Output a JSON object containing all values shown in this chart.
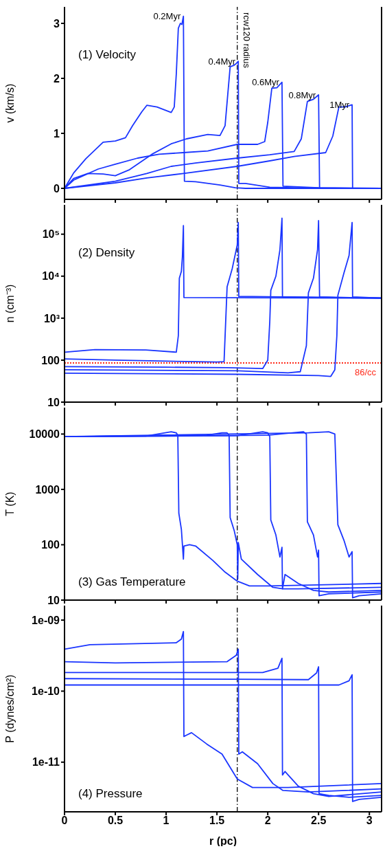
{
  "chart_data": [
    {
      "type": "line",
      "ylabel": "v (km/s)",
      "xlim": [
        0,
        3.12
      ],
      "xticks": [
        0,
        0.5,
        1,
        1.5,
        2,
        2.5,
        3
      ],
      "ylim": [
        -0.2,
        3.3
      ],
      "yticks": [
        0,
        1,
        2,
        3
      ],
      "tick_labels": "y",
      "annotations": [
        "(1) Velocity"
      ],
      "ref_lines": [
        {
          "axis": "x",
          "value": 1.7,
          "label": "rcw120 radius",
          "color": "#000000",
          "line_style": "dashed"
        }
      ],
      "series": [
        {
          "name": "0.2Myr",
          "color": "#1a35ff",
          "x": [
            0,
            0.09,
            0.21,
            0.38,
            0.5,
            0.6,
            0.67,
            0.76,
            0.81,
            0.91,
            1.05,
            1.08,
            1.1,
            1.12,
            1.14,
            1.155,
            1.17,
            1.18,
            1.29,
            1.53,
            1.68,
            1.78,
            3.12
          ],
          "values": [
            0,
            0.28,
            0.54,
            0.84,
            0.86,
            0.92,
            1.14,
            1.39,
            1.51,
            1.48,
            1.38,
            1.48,
            2.08,
            2.91,
            3.0,
            2.98,
            3.13,
            0.13,
            0.12,
            0.06,
            0.01,
            0,
            0
          ]
        },
        {
          "name": "0.4Myr",
          "color": "#1a35ff",
          "x": [
            0,
            0.09,
            0.23,
            0.38,
            0.5,
            0.64,
            0.86,
            1.05,
            1.2,
            1.41,
            1.53,
            1.58,
            1.63,
            1.67,
            1.69,
            1.71,
            1.715,
            1.78,
            2.02,
            2.26,
            3.12
          ],
          "values": [
            0,
            0.18,
            0.27,
            0.26,
            0.23,
            0.34,
            0.62,
            0.81,
            0.9,
            0.98,
            0.96,
            1.14,
            2.21,
            2.24,
            2.27,
            2.31,
            0.09,
            0.09,
            0.02,
            0.01,
            0
          ]
        },
        {
          "name": "0.6Myr",
          "color": "#1a35ff",
          "x": [
            0,
            0.09,
            0.33,
            0.5,
            0.72,
            0.93,
            1.17,
            1.41,
            1.7,
            1.9,
            1.97,
            2.0,
            2.04,
            2.09,
            2.14,
            2.15,
            2.5,
            3.12
          ],
          "values": [
            0,
            0.15,
            0.35,
            0.44,
            0.55,
            0.62,
            0.65,
            0.68,
            0.8,
            0.8,
            0.85,
            1.2,
            1.82,
            1.83,
            1.93,
            0.04,
            0.01,
            0
          ]
        },
        {
          "name": "0.8Myr",
          "color": "#1a35ff",
          "x": [
            0,
            0.5,
            0.81,
            1.05,
            1.29,
            1.7,
            2.02,
            2.26,
            2.33,
            2.39,
            2.45,
            2.5,
            2.51,
            3.12
          ],
          "values": [
            0,
            0.13,
            0.27,
            0.4,
            0.46,
            0.55,
            0.61,
            0.67,
            0.9,
            1.58,
            1.62,
            1.7,
            0,
            0
          ]
        },
        {
          "name": "1Myr",
          "color": "#1a35ff",
          "x": [
            0,
            0.5,
            0.81,
            1.17,
            1.7,
            2.02,
            2.26,
            2.57,
            2.64,
            2.7,
            2.76,
            2.83,
            2.835,
            3.12
          ],
          "values": [
            0,
            0.1,
            0.19,
            0.27,
            0.4,
            0.5,
            0.58,
            0.65,
            0.95,
            1.48,
            1.48,
            1.52,
            0,
            0
          ]
        }
      ]
    },
    {
      "type": "line",
      "ylabel": "n (cm⁻³)",
      "xlim": [
        0,
        3.12
      ],
      "xticks": [
        0,
        0.5,
        1,
        1.5,
        2,
        2.5,
        3
      ],
      "ylim": [
        10,
        500000
      ],
      "yticks": [
        10,
        100,
        {
          "value": 1000,
          "label": "10³"
        },
        {
          "value": 10000,
          "label": "10⁴"
        },
        {
          "value": 100000,
          "label": "10⁵"
        }
      ],
      "log": true,
      "tick_labels": "y",
      "annotations": [
        "(2) Density"
      ],
      "ref_lines": [
        {
          "axis": "x",
          "value": 1.7,
          "color": "#000000",
          "line_style": "dashed"
        },
        {
          "axis": "y",
          "value": 86,
          "label": "86/cc",
          "color": "#ff2a1a",
          "line_style": "dotted"
        }
      ],
      "series": [
        {
          "color": "#1a35ff",
          "x": [
            0,
            0.3,
            0.8,
            1.1,
            1.12,
            1.13,
            1.15,
            1.16,
            1.17,
            1.175,
            3.12
          ],
          "values": [
            155,
            178,
            175,
            155,
            380,
            8900,
            13000,
            29000,
            160000,
            3100,
            3000
          ]
        },
        {
          "color": "#1a35ff",
          "x": [
            0,
            0.5,
            1.5,
            1.57,
            1.6,
            1.65,
            1.7,
            1.71,
            1.715,
            3.12
          ],
          "values": [
            107,
            100,
            90,
            92,
            5600,
            15000,
            56000,
            190000,
            3300,
            3000
          ]
        },
        {
          "color": "#1a35ff",
          "x": [
            0,
            1.0,
            1.6,
            1.95,
            2.0,
            2.02,
            2.03,
            2.08,
            2.12,
            2.14,
            2.145,
            3.12
          ],
          "values": [
            70,
            68,
            66,
            63,
            100,
            830,
            4600,
            10000,
            43000,
            240000,
            3200,
            3000
          ]
        },
        {
          "color": "#1a35ff",
          "x": [
            0,
            1.7,
            2.2,
            2.32,
            2.38,
            2.4,
            2.45,
            2.49,
            2.5,
            2.51,
            3.12
          ],
          "values": [
            59,
            56,
            50,
            53,
            220,
            4000,
            9000,
            43000,
            210000,
            3200,
            3000
          ]
        },
        {
          "color": "#1a35ff",
          "x": [
            0,
            1.7,
            2.5,
            2.62,
            2.66,
            2.68,
            2.69,
            2.75,
            2.8,
            2.83,
            2.835,
            3.12
          ],
          "values": [
            49,
            46,
            43,
            41,
            59,
            380,
            3500,
            12000,
            31000,
            190000,
            3200,
            3000
          ]
        }
      ]
    },
    {
      "type": "line",
      "ylabel": "T (K)",
      "xlim": [
        0,
        3.12
      ],
      "xticks": [
        0,
        0.5,
        1,
        1.5,
        2,
        2.5,
        3
      ],
      "ylim": [
        10,
        30000
      ],
      "yticks": [
        10,
        100,
        1000,
        10000
      ],
      "log": true,
      "tick_labels": "y",
      "annotations": [
        "(3) Gas Temperature"
      ],
      "ref_lines": [
        {
          "axis": "x",
          "value": 1.7,
          "color": "#000000",
          "line_style": "dashed"
        }
      ],
      "series": [
        {
          "color": "#1a35ff",
          "x": [
            0,
            0.8,
            1.05,
            1.1,
            1.115,
            1.125,
            1.15,
            1.17,
            1.175,
            1.23,
            1.29,
            1.46,
            1.58,
            1.7,
            1.82,
            2.02,
            3.12
          ],
          "values": [
            9000,
            9200,
            11000,
            10500,
            9500,
            370,
            190,
            55,
            95,
            100,
            95,
            52,
            32,
            22,
            18,
            18,
            20
          ]
        },
        {
          "color": "#1a35ff",
          "x": [
            0,
            1.4,
            1.55,
            1.6,
            1.62,
            1.63,
            1.67,
            1.7,
            1.705,
            1.71,
            1.74,
            1.9,
            2.05,
            2.15,
            2.3,
            3.12
          ],
          "values": [
            9000,
            9500,
            10500,
            10500,
            9500,
            310,
            180,
            100,
            24,
            110,
            55,
            29,
            17,
            16,
            16,
            17
          ]
        },
        {
          "color": "#1a35ff",
          "x": [
            0,
            1.7,
            1.95,
            2.0,
            2.02,
            2.03,
            2.08,
            2.12,
            2.14,
            2.145,
            2.17,
            2.3,
            2.45,
            2.6,
            3.12
          ],
          "values": [
            9000,
            9300,
            11000,
            10500,
            9000,
            280,
            150,
            60,
            90,
            16,
            29,
            20,
            15,
            14,
            15
          ]
        },
        {
          "color": "#1a35ff",
          "x": [
            0,
            2.0,
            2.35,
            2.38,
            2.39,
            2.45,
            2.49,
            2.5,
            2.505,
            2.6,
            3.12
          ],
          "values": [
            9000,
            9500,
            11000,
            10000,
            260,
            150,
            60,
            80,
            12,
            13,
            14
          ]
        },
        {
          "color": "#1a35ff",
          "x": [
            0,
            2.4,
            2.6,
            2.66,
            2.69,
            2.75,
            2.8,
            2.83,
            2.835,
            2.9,
            3.12
          ],
          "values": [
            9000,
            10500,
            11000,
            10000,
            230,
            120,
            60,
            75,
            11,
            12,
            13
          ]
        }
      ]
    },
    {
      "type": "line",
      "ylabel": "P (dynes/cm²)",
      "xlabel": "r (pc)",
      "xlim": [
        0,
        3.12
      ],
      "xticks": [
        0,
        0.5,
        1,
        1.5,
        2,
        2.5,
        3
      ],
      "ylim": [
        2e-12,
        1.6e-09
      ],
      "yticks": [
        {
          "value": 1e-09,
          "label": "1e-09"
        },
        {
          "value": 1e-10,
          "label": "1e-10"
        },
        {
          "value": 1e-11,
          "label": "1e-11"
        }
      ],
      "log": true,
      "annotations": [
        "(4) Pressure"
      ],
      "ref_lines": [
        {
          "axis": "x",
          "value": 1.7,
          "color": "#000000",
          "line_style": "dashed"
        }
      ],
      "series": [
        {
          "color": "#1a35ff",
          "x": [
            0,
            0.25,
            1.1,
            1.15,
            1.17,
            1.175,
            1.2,
            1.25,
            1.4,
            1.55,
            1.7,
            1.85,
            2.2,
            3.12
          ],
          "values": [
            3.9e-10,
            4.5e-10,
            4.8e-10,
            5.4e-10,
            6.9e-10,
            2.3e-11,
            2.4e-11,
            2.6e-11,
            1.8e-11,
            1.3e-11,
            5.8e-12,
            4.4e-12,
            4.4e-12,
            5e-12
          ]
        },
        {
          "color": "#1a35ff",
          "x": [
            0,
            0.5,
            1.6,
            1.69,
            1.71,
            1.715,
            1.75,
            1.9,
            2.05,
            2.15,
            2.4,
            3.12
          ],
          "values": [
            2.6e-10,
            2.5e-10,
            2.6e-10,
            3.2e-10,
            3.9e-10,
            1.3e-11,
            1.4e-11,
            9.5e-12,
            5e-12,
            4e-12,
            3.8e-12,
            4.2e-12
          ]
        },
        {
          "color": "#1a35ff",
          "x": [
            0,
            1.95,
            2.1,
            2.14,
            2.145,
            2.17,
            2.3,
            2.45,
            2.6,
            3.12
          ],
          "values": [
            1.83e-10,
            1.83e-10,
            2.1e-10,
            2.9e-10,
            6.6e-12,
            7.4e-12,
            4.6e-12,
            3.6e-12,
            3.3e-12,
            3.8e-12
          ]
        },
        {
          "color": "#1a35ff",
          "x": [
            0,
            1.7,
            2.4,
            2.48,
            2.5,
            2.505,
            2.6,
            2.8,
            3.12
          ],
          "values": [
            1.5e-10,
            1.47e-10,
            1.45e-10,
            1.8e-10,
            2.2e-10,
            3.6e-12,
            3.4e-12,
            3.2e-12,
            3.4e-12
          ]
        },
        {
          "color": "#1a35ff",
          "x": [
            0,
            2.7,
            2.8,
            2.83,
            2.835,
            2.9,
            3.12
          ],
          "values": [
            1.22e-10,
            1.22e-10,
            1.4e-10,
            1.7e-10,
            2.8e-12,
            3e-12,
            3.2e-12
          ]
        }
      ]
    }
  ]
}
